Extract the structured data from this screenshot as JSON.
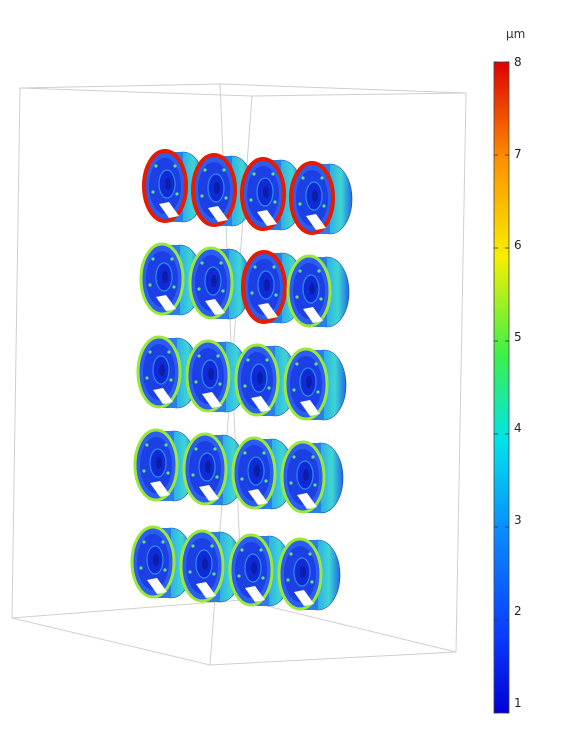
{
  "colorbar": {
    "unit": "µm",
    "min": 1,
    "max": 8,
    "ticks": [
      "8",
      "7",
      "6",
      "5",
      "4",
      "3",
      "2",
      "1"
    ]
  },
  "scene": {
    "rows": 5,
    "columns": 4
  }
}
